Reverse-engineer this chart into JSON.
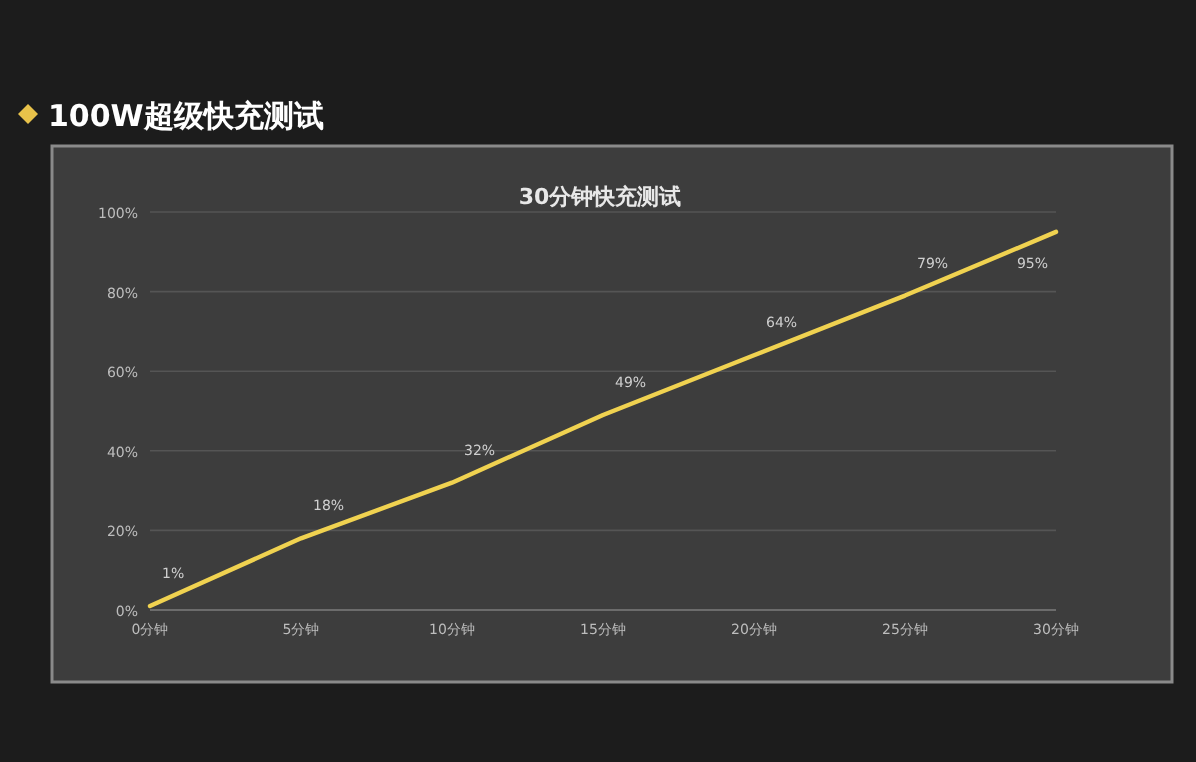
{
  "chart_data": {
    "type": "line",
    "title": "100W超级快充测试",
    "subtitle": "30分钟快充测试",
    "categories": [
      "0分钟",
      "5分钟",
      "10分钟",
      "15分钟",
      "20分钟",
      "25分钟",
      "30分钟"
    ],
    "series": [
      {
        "color": "#f0d250",
        "values": [
          1,
          18,
          32,
          49,
          64,
          79,
          95
        ],
        "value_labels": [
          "1%",
          "18%",
          "32%",
          "49%",
          "64%",
          "79%",
          "95%"
        ]
      }
    ],
    "ylim": [
      0,
      100
    ],
    "yticks": [
      {
        "value": 0,
        "label": "0%"
      },
      {
        "value": 20,
        "label": "20%"
      },
      {
        "value": 40,
        "label": "40%"
      },
      {
        "value": 60,
        "label": "60%"
      },
      {
        "value": 80,
        "label": "80%"
      },
      {
        "value": 100,
        "label": "100%"
      }
    ],
    "grid": "y",
    "marker": "none",
    "line_style": "solid"
  }
}
